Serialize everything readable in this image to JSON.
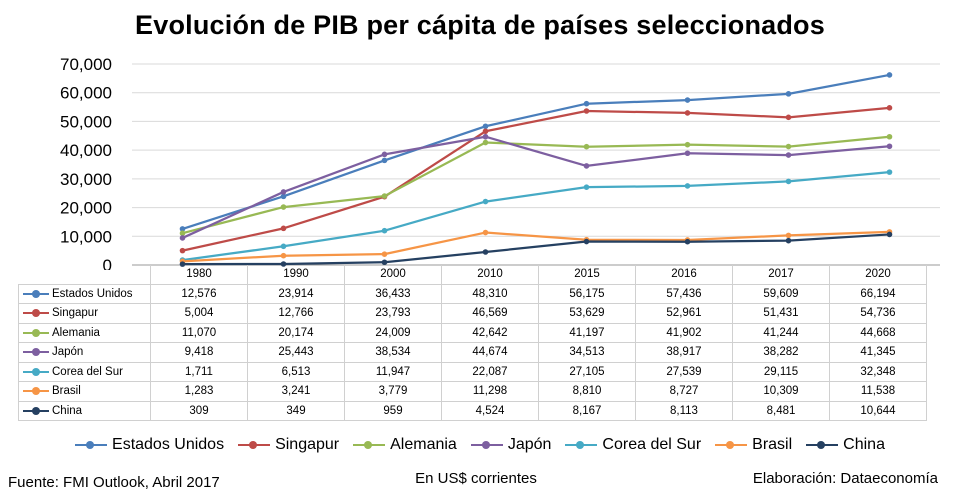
{
  "title": "Evolución de PIB per cápita de países seleccionados",
  "footer": {
    "source": "Fuente: FMI Outlook, Abril 2017",
    "units": "En US$ corrientes",
    "credit": "Elaboración: Dataeconomía"
  },
  "chart_data": {
    "type": "line",
    "title": "Evolución de PIB per cápita de países seleccionados",
    "categories": [
      "1980",
      "1990",
      "2000",
      "2010",
      "2015",
      "2016",
      "2017",
      "2020"
    ],
    "ylim": [
      0,
      70000
    ],
    "yticks": [
      "0",
      "10,000",
      "20,000",
      "30,000",
      "40,000",
      "50,000",
      "60,000",
      "70,000"
    ],
    "grid": true,
    "legend": "bottom",
    "data_table": true,
    "series": [
      {
        "name": "Estados Unidos",
        "color": "#4a7ebb",
        "values": [
          12576,
          23914,
          36433,
          48310,
          56175,
          57436,
          59609,
          66194
        ],
        "labels": [
          "12,576",
          "23,914",
          "36,433",
          "48,310",
          "56,175",
          "57,436",
          "59,609",
          "66,194"
        ]
      },
      {
        "name": "Singapur",
        "color": "#be4b48",
        "values": [
          5004,
          12766,
          23793,
          46569,
          53629,
          52961,
          51431,
          54736
        ],
        "labels": [
          "5,004",
          "12,766",
          "23,793",
          "46,569",
          "53,629",
          "52,961",
          "51,431",
          "54,736"
        ]
      },
      {
        "name": "Alemania",
        "color": "#98b954",
        "values": [
          11070,
          20174,
          24009,
          42642,
          41197,
          41902,
          41244,
          44668
        ],
        "labels": [
          "11,070",
          "20,174",
          "24,009",
          "42,642",
          "41,197",
          "41,902",
          "41,244",
          "44,668"
        ]
      },
      {
        "name": "Japón",
        "color": "#7d5fa0",
        "values": [
          9418,
          25443,
          38534,
          44674,
          34513,
          38917,
          38282,
          41345
        ],
        "labels": [
          "9,418",
          "25,443",
          "38,534",
          "44,674",
          "34,513",
          "38,917",
          "38,282",
          "41,345"
        ]
      },
      {
        "name": "Corea del Sur",
        "color": "#46aac5",
        "values": [
          1711,
          6513,
          11947,
          22087,
          27105,
          27539,
          29115,
          32348
        ],
        "labels": [
          "1,711",
          "6,513",
          "11,947",
          "22,087",
          "27,105",
          "27,539",
          "29,115",
          "32,348"
        ]
      },
      {
        "name": "Brasil",
        "color": "#f69546",
        "values": [
          1283,
          3241,
          3779,
          11298,
          8810,
          8727,
          10309,
          11538
        ],
        "labels": [
          "1,283",
          "3,241",
          "3,779",
          "11,298",
          "8,810",
          "8,727",
          "10,309",
          "11,538"
        ]
      },
      {
        "name": "China",
        "color": "#254061",
        "values": [
          309,
          349,
          959,
          4524,
          8167,
          8113,
          8481,
          10644
        ],
        "labels": [
          "309",
          "349",
          "959",
          "4,524",
          "8,167",
          "8,113",
          "8,481",
          "10,644"
        ]
      }
    ]
  }
}
